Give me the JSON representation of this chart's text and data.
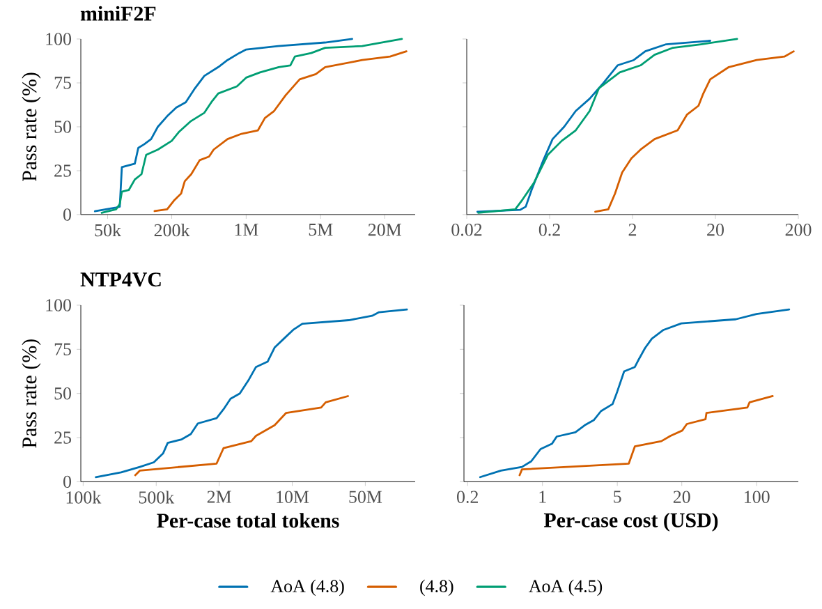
{
  "chart_data": [
    {
      "type": "line",
      "title": "miniF2F",
      "ylabel": "Pass rate (%)",
      "log": "x",
      "legend": "bottom",
      "marker": "none",
      "line_style": "solid",
      "xlim": [
        28000,
        38700000
      ],
      "ylim": [
        0,
        100
      ],
      "xticks": [
        {
          "value": 50000,
          "label": "50k"
        },
        {
          "value": 200000,
          "label": "200k"
        },
        {
          "value": 1000000,
          "label": "1M"
        },
        {
          "value": 5000000,
          "label": "5M"
        },
        {
          "value": 20000000,
          "label": "20M"
        }
      ],
      "yticks": [
        0,
        25,
        50,
        75,
        100
      ],
      "series": [
        {
          "name": "AoA (4.8)",
          "color": "#0072b2",
          "x": [
            38000,
            60000,
            65000,
            68000,
            90000,
            97000,
            110000,
            128000,
            148000,
            181000,
            221000,
            271000,
            331000,
            405000,
            547000,
            668000,
            861000,
            1000000,
            2000000,
            5500000,
            9900000
          ],
          "values": [
            1.9,
            4,
            4.5,
            27,
            29,
            38,
            40,
            43,
            50,
            56,
            61,
            64,
            72,
            79,
            84,
            88,
            92,
            94,
            96,
            98,
            100
          ]
        },
        {
          "name": "(4.8)",
          "color": "#d55e00",
          "x": [
            138000,
            181000,
            210000,
            245000,
            265000,
            305000,
            366000,
            448000,
            495000,
            668000,
            904000,
            1290000,
            1500000,
            1830000,
            2350000,
            3180000,
            4510000,
            5520000,
            12300000,
            22500000,
            32000000
          ],
          "values": [
            2,
            3,
            8,
            12,
            19,
            23,
            31,
            33,
            37,
            43,
            46,
            48,
            55,
            59,
            68,
            77,
            80,
            84,
            88,
            90,
            93
          ]
        },
        {
          "name": "AoA (4.5)",
          "color": "#009e73",
          "x": [
            44000,
            60000,
            65000,
            68000,
            79000,
            90000,
            104000,
            115000,
            148000,
            200000,
            233000,
            299000,
            405000,
            471000,
            547000,
            818000,
            1000000,
            1350000,
            2020000,
            2600000,
            2870000,
            4080000,
            5520000,
            12300000,
            15100000,
            29000000
          ],
          "values": [
            1,
            3,
            6,
            13,
            14,
            20,
            23,
            34,
            37,
            42,
            47,
            53,
            58,
            64,
            69,
            73,
            78,
            81,
            84,
            85,
            90,
            92,
            95,
            96,
            97,
            100
          ]
        }
      ]
    },
    {
      "type": "line",
      "log": "x",
      "tick_labels": "x",
      "marker": "none",
      "line_style": "solid",
      "xlim": [
        0.02,
        200
      ],
      "ylim": [
        0,
        100
      ],
      "xticks": [
        0.02,
        0.2,
        2,
        20,
        200
      ],
      "yticks": [
        0,
        25,
        50,
        75,
        100
      ],
      "series": [
        {
          "color": "#0072b2",
          "x": [
            0.0269,
            0.088,
            0.103,
            0.121,
            0.168,
            0.217,
            0.299,
            0.413,
            0.608,
            0.894,
            1.32,
            2.07,
            2.85,
            5.09,
            17.3
          ],
          "values": [
            1.6,
            2.7,
            4.5,
            14,
            31,
            43,
            50,
            59,
            66,
            75,
            85,
            88,
            93,
            97,
            99
          ]
        },
        {
          "color": "#d55e00",
          "x": [
            0.71,
            1.02,
            1.23,
            1.5,
            1.94,
            2.5,
            3.69,
            7.0,
            9.1,
            12.5,
            14.3,
            17.3,
            29,
            62.8,
            136,
            176
          ],
          "values": [
            1.6,
            3,
            12,
            24,
            32,
            37,
            43,
            48,
            57,
            62,
            69,
            77,
            84,
            88,
            90,
            93
          ]
        },
        {
          "color": "#009e73",
          "x": [
            0.0276,
            0.077,
            0.094,
            0.129,
            0.19,
            0.28,
            0.413,
            0.608,
            0.787,
            1.4,
            2.5,
            3.69,
            6.15,
            13.4,
            36.5
          ],
          "values": [
            1,
            3,
            8.5,
            18,
            34,
            42,
            48,
            59,
            72,
            81,
            85,
            91,
            95,
            97,
            100
          ]
        }
      ]
    },
    {
      "type": "line",
      "title": "NTP4VC",
      "ylabel": "Pass rate (%)",
      "xlabel": "Per-case total tokens",
      "log": "x",
      "marker": "none",
      "line_style": "solid",
      "xlim": [
        95000,
        150000000
      ],
      "ylim": [
        0,
        100
      ],
      "xticks": [
        {
          "value": 100000,
          "label": "100k"
        },
        {
          "value": 500000,
          "label": "500k"
        },
        {
          "value": 2000000,
          "label": "2M"
        },
        {
          "value": 10000000,
          "label": "10M"
        },
        {
          "value": 50000000,
          "label": "50M"
        }
      ],
      "yticks": [
        0,
        25,
        50,
        75,
        100
      ],
      "series": [
        {
          "color": "#0072b2",
          "x": [
            132000,
            231000,
            348000,
            474000,
            581000,
            644000,
            876000,
            1070000,
            1250000,
            1890000,
            2200000,
            2570000,
            3150000,
            3860000,
            4500000,
            5810000,
            6780000,
            8310000,
            10200000,
            12500000,
            34800000,
            58100000,
            67700000,
            125000000
          ],
          "values": [
            2.6,
            5.3,
            8.4,
            11,
            16,
            22,
            24,
            27,
            33,
            36,
            41,
            47,
            50,
            58,
            65,
            68,
            76,
            81,
            86,
            89.5,
            91.5,
            94,
            96,
            97.6
          ]
        },
        {
          "color": "#d55e00",
          "x": [
            315000,
            348000,
            1890000,
            2200000,
            4060000,
            4500000,
            6780000,
            8750000,
            18900000,
            20900000,
            34100000
          ],
          "values": [
            3.7,
            6.3,
            10.3,
            19,
            23,
            26,
            32,
            39,
            42,
            45,
            48.5
          ]
        }
      ]
    },
    {
      "type": "line",
      "xlabel": "Per-case cost (USD)",
      "log": "x",
      "tick_labels": "x",
      "marker": "none",
      "line_style": "solid",
      "xlim": [
        0.185,
        245
      ],
      "ylim": [
        0,
        100
      ],
      "xticks": [
        0.2,
        1,
        5,
        20,
        100
      ],
      "yticks": [
        0,
        25,
        50,
        75,
        100
      ],
      "series": [
        {
          "color": "#0072b2",
          "x": [
            0.262,
            0.41,
            0.644,
            0.786,
            0.96,
            1.23,
            1.36,
            2.03,
            2.48,
            3.03,
            3.52,
            4.52,
            4.99,
            5.79,
            7.29,
            7.82,
            9.08,
            10.5,
            13.5,
            19.8,
            63.7,
            99.8,
            201
          ],
          "values": [
            2.6,
            6.3,
            8.4,
            11.6,
            18.5,
            21.6,
            25.6,
            28,
            32,
            35,
            40,
            44,
            51,
            62.5,
            65,
            68.6,
            75.7,
            81,
            86,
            89.7,
            92,
            95,
            97.6
          ]
        },
        {
          "color": "#d55e00",
          "x": [
            0.612,
            0.644,
            6.4,
            7.29,
            12.9,
            15.7,
            20.2,
            22.3,
            33.3,
            34,
            81.8,
            85.9,
            141
          ],
          "values": [
            3.7,
            7,
            10.3,
            20,
            23,
            26,
            29,
            32.7,
            35.4,
            39,
            42,
            45,
            48.5
          ]
        }
      ]
    }
  ]
}
